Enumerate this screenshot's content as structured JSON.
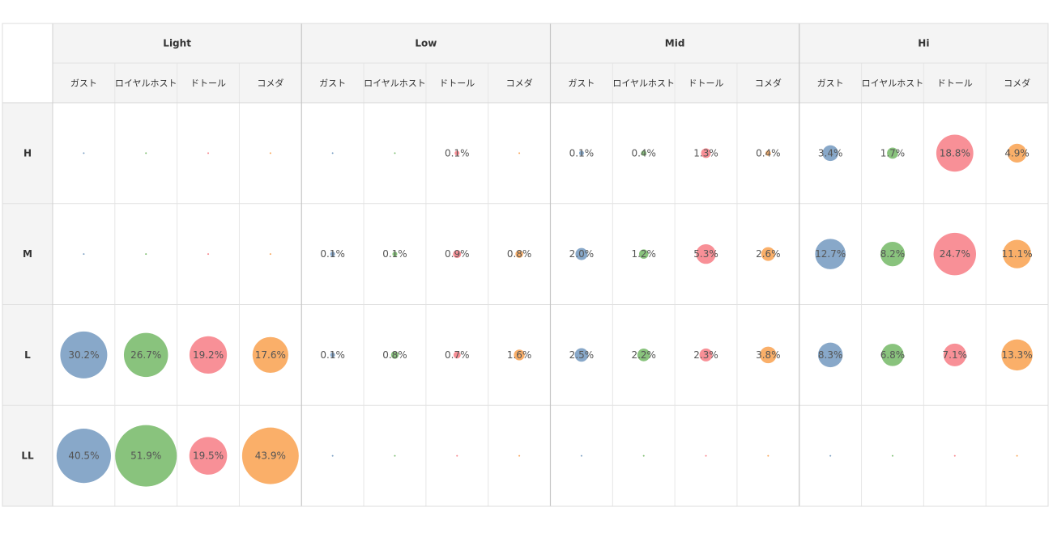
{
  "chart_data": {
    "type": "bubble-matrix",
    "column_groups": [
      "Light",
      "Low",
      "Mid",
      "Hi"
    ],
    "brands": [
      "ガスト",
      "ロイヤルホスト",
      "ドトール",
      "コメダ"
    ],
    "rows": [
      "H",
      "M",
      "L",
      "LL"
    ],
    "brand_colors": [
      "#7b9fc3",
      "#7cbd6f",
      "#f7848c",
      "#f9a659"
    ],
    "values": {
      "H": [
        [
          null,
          null,
          null,
          null
        ],
        [
          null,
          null,
          0.1,
          null
        ],
        [
          0.1,
          0.4,
          1.3,
          0.4
        ],
        [
          3.4,
          1.7,
          18.8,
          4.9
        ]
      ],
      "M": [
        [
          null,
          null,
          null,
          null
        ],
        [
          0.1,
          0.1,
          0.9,
          0.8
        ],
        [
          2.0,
          1.2,
          5.3,
          2.6
        ],
        [
          12.7,
          8.2,
          24.7,
          11.1
        ]
      ],
      "L": [
        [
          30.2,
          26.7,
          19.2,
          17.6
        ],
        [
          0.1,
          0.8,
          0.7,
          1.6
        ],
        [
          2.5,
          2.2,
          2.3,
          3.8
        ],
        [
          8.3,
          6.8,
          7.1,
          13.3
        ]
      ],
      "LL": [
        [
          40.5,
          51.9,
          19.5,
          43.9
        ],
        [
          null,
          null,
          null,
          null
        ],
        [
          null,
          null,
          null,
          null
        ],
        [
          null,
          null,
          null,
          null
        ]
      ]
    },
    "value_suffix": "%"
  }
}
